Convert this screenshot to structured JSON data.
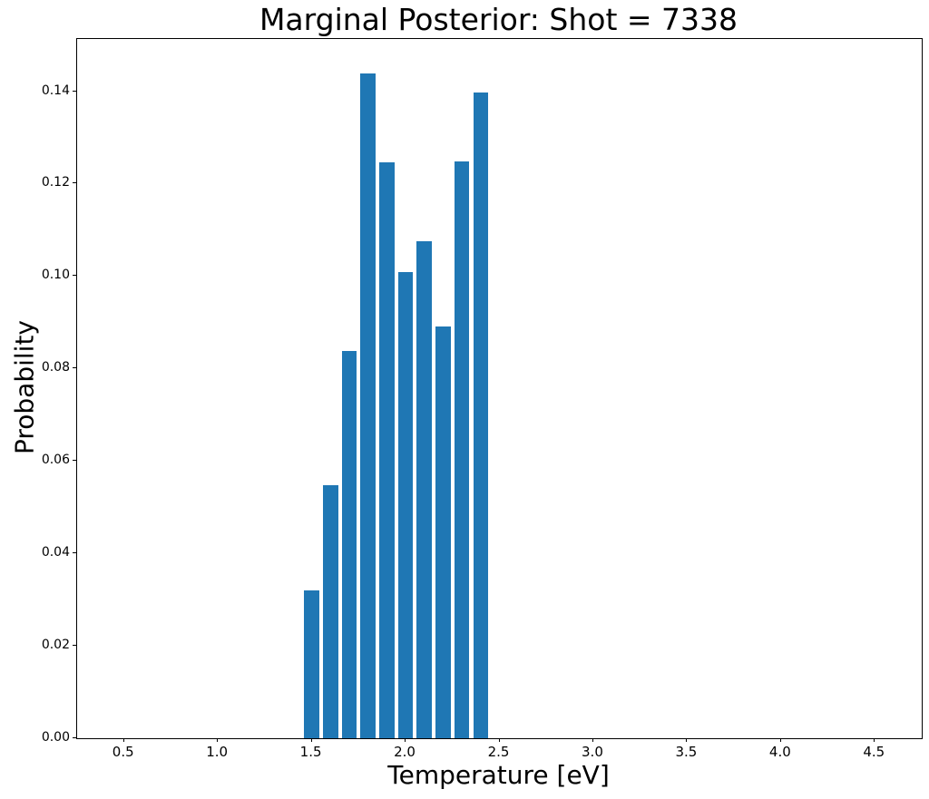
{
  "chart_data": {
    "type": "bar",
    "title": "Marginal Posterior: Shot = 7338",
    "xlabel": "Temperature [eV]",
    "ylabel": "Probability",
    "x": [
      1.5,
      1.6,
      1.7,
      1.8,
      1.9,
      2.0,
      2.1,
      2.2,
      2.3,
      2.4
    ],
    "values": [
      0.032,
      0.0548,
      0.0838,
      0.1439,
      0.1246,
      0.1009,
      0.1075,
      0.0891,
      0.1248,
      0.1397
    ],
    "bar_width": 0.08,
    "bar_color": "#1f77b4",
    "xlim": [
      0.25,
      4.75
    ],
    "ylim": [
      0.0,
      0.1513
    ],
    "x_ticks": [
      0.5,
      1.0,
      1.5,
      2.0,
      2.5,
      3.0,
      3.5,
      4.0,
      4.5
    ],
    "x_tick_labels": [
      "0.5",
      "1.0",
      "1.5",
      "2.0",
      "2.5",
      "3.0",
      "3.5",
      "4.0",
      "4.5"
    ],
    "y_ticks": [
      0.0,
      0.02,
      0.04,
      0.06,
      0.08,
      0.1,
      0.12,
      0.14
    ],
    "y_tick_labels": [
      "0.00",
      "0.02",
      "0.04",
      "0.06",
      "0.08",
      "0.10",
      "0.12",
      "0.14"
    ],
    "grid": false,
    "legend": null,
    "spine_color": "#000000",
    "text_color": "#000000",
    "background": "#ffffff"
  }
}
